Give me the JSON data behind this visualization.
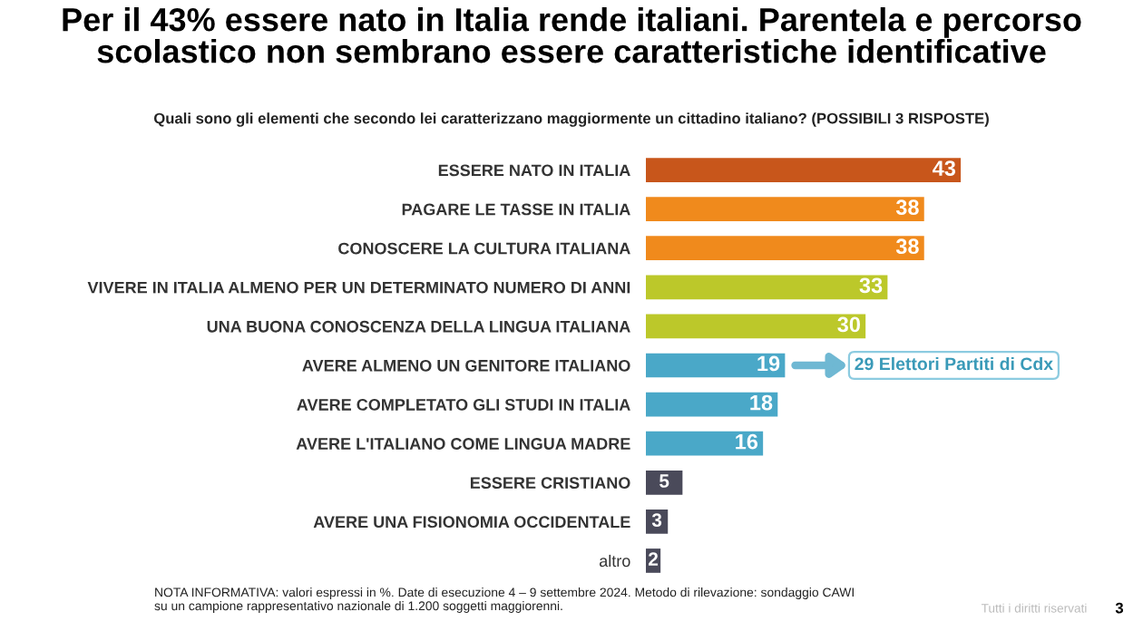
{
  "chart_data": {
    "type": "bar",
    "orientation": "horizontal",
    "title": "Per il 43% essere nato in Italia rende italiani. Parentela e percorso\nscolastico non sembrano essere caratteristiche identificative",
    "subtitle": "Quali sono gli elementi che secondo lei caratterizzano maggiormente un cittadino italiano? (POSSIBILI 3 RISPOSTE)",
    "categories": [
      "ESSERE NATO IN ITALIA",
      "PAGARE LE TASSE IN ITALIA",
      "CONOSCERE LA CULTURA ITALIANA",
      "VIVERE IN ITALIA ALMENO PER UN DETERMINATO NUMERO DI ANNI",
      "UNA BUONA CONOSCENZA DELLA LINGUA ITALIANA",
      "AVERE ALMENO UN GENITORE ITALIANO",
      "AVERE COMPLETATO GLI STUDI IN ITALIA",
      "AVERE L'ITALIANO COME LINGUA MADRE",
      "ESSERE CRISTIANO",
      "AVERE UNA FISIONOMIA OCCIDENTALE",
      "altro"
    ],
    "values": [
      43,
      38,
      38,
      33,
      30,
      19,
      18,
      16,
      5,
      3,
      2
    ],
    "colors": [
      "#c8561b",
      "#f08a1c",
      "#f08a1c",
      "#bcc82a",
      "#bcc82a",
      "#4aa8c8",
      "#4aa8c8",
      "#4aa8c8",
      "#4a4a5a",
      "#4a4a5a",
      "#4a4a5a"
    ],
    "data_labels": true,
    "annotations": [
      "29 Elettori Partiti di Cdx",
      "NOTA INFORMATIVA: valori espressi in %. Date di esecuzione 4 – 9 settembre 2024. Metodo di rilevazione: sondaggio CAWI\nsu un campione rappresentativo nazionale di 1.200 soggetti maggiorenni.",
      "Tutti i diritti riservati",
      "3"
    ]
  }
}
